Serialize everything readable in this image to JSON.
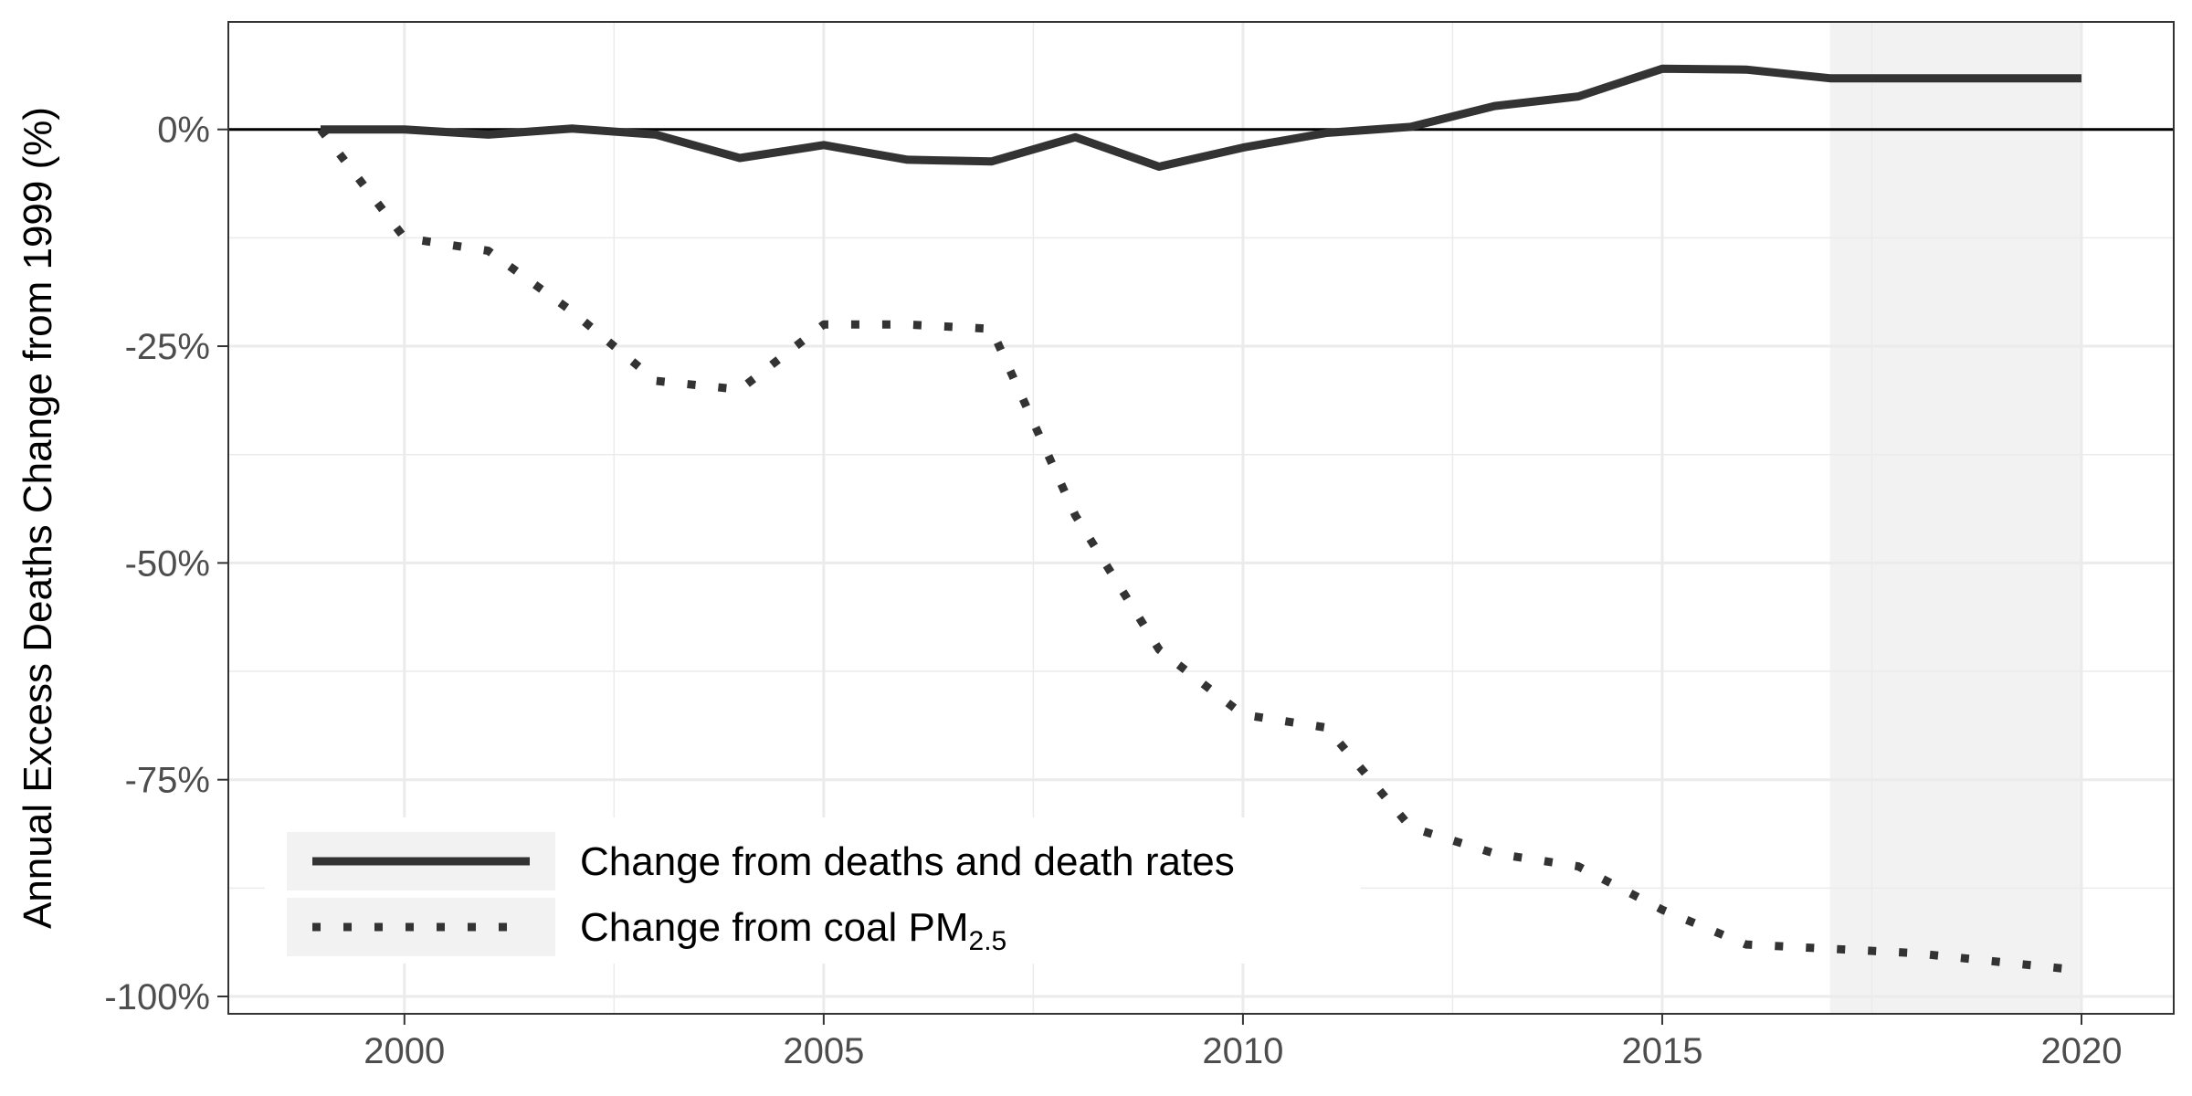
{
  "chart_data": {
    "type": "line",
    "title": "",
    "xlabel": "",
    "ylabel": "Annual Excess Deaths Change from 1999 (%)",
    "xlim": [
      1997.9,
      2021.1
    ],
    "ylim": [
      -102,
      12.4
    ],
    "x_ticks": [
      2000,
      2005,
      2010,
      2015,
      2020
    ],
    "y_ticks": [
      0,
      -25,
      -50,
      -75,
      -100
    ],
    "y_tick_labels": [
      "0%",
      "-25%",
      "-50%",
      "-75%",
      "-100%"
    ],
    "grid": true,
    "reference_line_y": 0,
    "shaded_region_x": [
      2017,
      2020
    ],
    "legend_position": "bottom-left",
    "colors": {
      "line": "#333333",
      "grid": "#ebebeb",
      "shade": "#f2f2f2",
      "legend_key_bg": "#f2f2f2",
      "reference": "#000000"
    },
    "series": [
      {
        "name": "Change from deaths and death rates",
        "style": "solid",
        "x": [
          1999,
          2000,
          2001,
          2002,
          2003,
          2004,
          2005,
          2006,
          2007,
          2008,
          2009,
          2010,
          2011,
          2012,
          2013,
          2014,
          2015,
          2016,
          2017,
          2018,
          2019,
          2020
        ],
        "values": [
          0,
          0,
          -0.6,
          0.1,
          -0.6,
          -3.3,
          -1.8,
          -3.5,
          -3.7,
          -0.9,
          -4.3,
          -2.1,
          -0.4,
          0.3,
          2.7,
          3.8,
          7.0,
          6.9,
          5.9,
          5.9,
          5.9,
          5.9
        ]
      },
      {
        "name": "Change from coal PM",
        "name_subscript": "2.5",
        "style": "dotted",
        "x": [
          1999,
          2000,
          2001,
          2002,
          2003,
          2004,
          2005,
          2006,
          2007,
          2008,
          2009,
          2010,
          2011,
          2012,
          2013,
          2014,
          2015,
          2016,
          2017,
          2018,
          2019,
          2020
        ],
        "values": [
          0,
          -12.5,
          -14,
          -21,
          -29,
          -30,
          -22.5,
          -22.5,
          -23,
          -44.5,
          -60,
          -67.5,
          -69,
          -80.5,
          -83.5,
          -85,
          -90,
          -94,
          -94.5,
          -95,
          -96,
          -97
        ]
      }
    ]
  }
}
